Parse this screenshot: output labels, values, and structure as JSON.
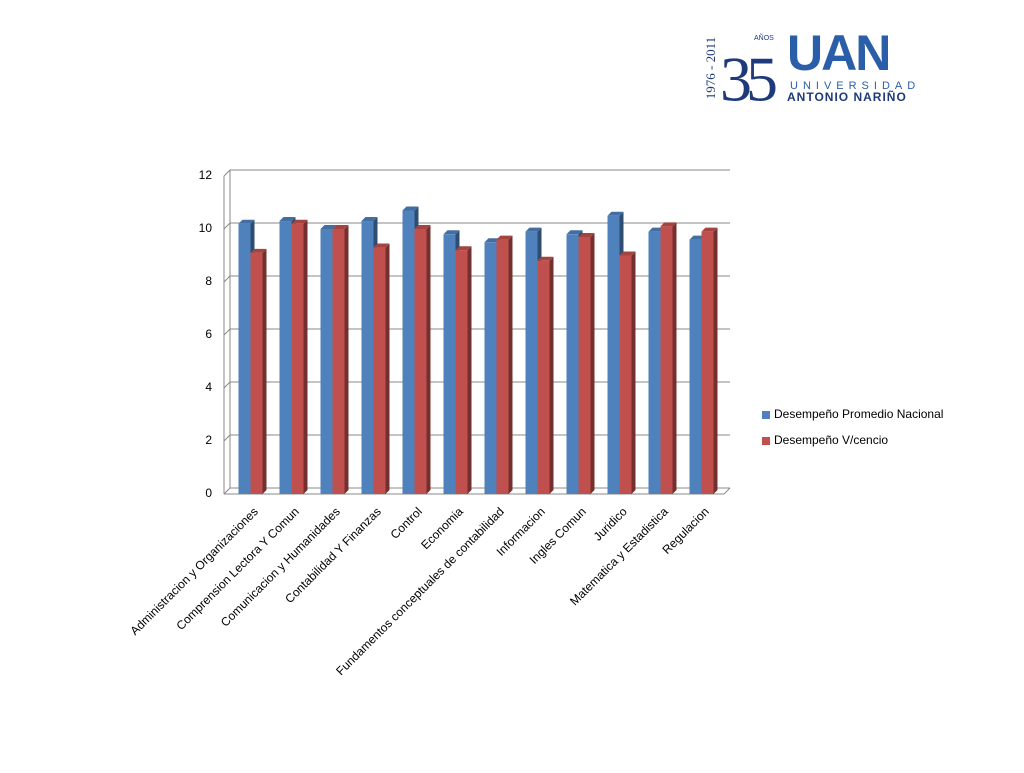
{
  "logo": {
    "years": "1976 - 2011",
    "number": "35",
    "anos": "AÑOS",
    "acronym": "UAN",
    "line1": "UNIVERSIDAD",
    "line2": "ANTONIO NARIÑO"
  },
  "chart_data": {
    "type": "bar",
    "categories": [
      "Administracion y Organizaciones",
      "Comprension Lectora Y Comun",
      "Comunicacion y Humanidades",
      "Contabilidad Y Finanzas",
      "Control",
      "Economia",
      "Fundamentos conceptuales de contabilidad",
      "Informacion",
      "Ingles Comun",
      "Juridico",
      "Matematica y Estadistica",
      "Regulacion"
    ],
    "series": [
      {
        "name": "Desempeño Promedio Nacional",
        "color": "#4f81bd",
        "values": [
          10.2,
          10.3,
          10.0,
          10.3,
          10.7,
          9.8,
          9.5,
          9.9,
          9.8,
          10.5,
          9.9,
          9.6
        ]
      },
      {
        "name": "Desempeño V/cencio",
        "color": "#c0504d",
        "values": [
          9.1,
          10.2,
          10.0,
          9.3,
          10.0,
          9.2,
          9.6,
          8.8,
          9.7,
          9.0,
          10.1,
          9.9
        ]
      }
    ],
    "ylim": [
      0,
      12
    ],
    "yticks": [
      0,
      2,
      4,
      6,
      8,
      10,
      12
    ],
    "grid": true,
    "legend": "right"
  }
}
